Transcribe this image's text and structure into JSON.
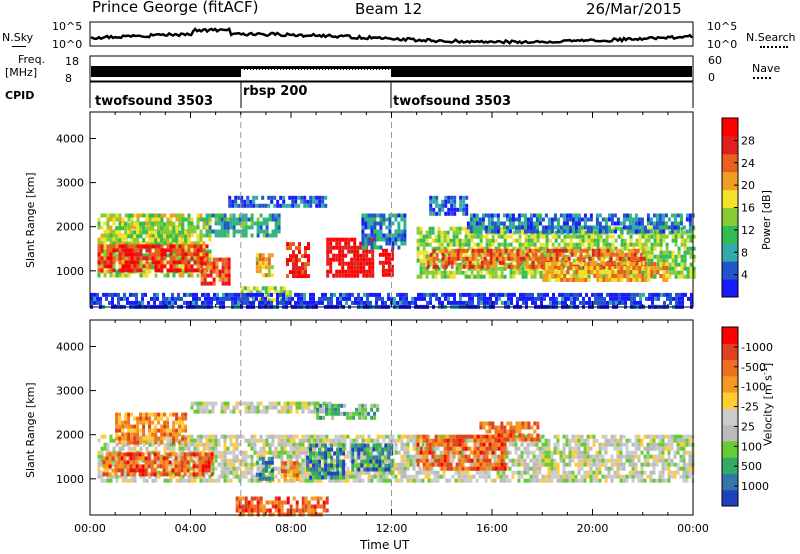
{
  "header": {
    "station": "Prince George (fitACF)",
    "beam": "Beam 12",
    "date": "26/Mar/2015"
  },
  "top_panels": {
    "nsky_label": "N.Sky",
    "nsky_ticks": [
      "10^5",
      "10^0"
    ],
    "nsearch_label": "N.Search",
    "nsearch_ticks": [
      "10^5",
      "10^0"
    ],
    "freq_label_1": "Freq.",
    "freq_label_2": "[MHz]",
    "freq_ticks": [
      "18",
      "8"
    ],
    "nave_label": "Nave",
    "nave_ticks": [
      "60",
      "0"
    ],
    "cpid_label": "CPID",
    "cpid_segments": [
      {
        "label": "twofsound 3503",
        "start": 0,
        "end": 6
      },
      {
        "label": "rbsp 200",
        "start": 6,
        "end": 12
      },
      {
        "label": "twofsound 3503",
        "start": 12,
        "end": 24
      }
    ]
  },
  "chart_data": [
    {
      "type": "heatmap",
      "title": "",
      "xlabel": "Time UT",
      "ylabel": "Slant Range [km]",
      "x_ticks": [
        "00:00",
        "04:00",
        "08:00",
        "12:00",
        "16:00",
        "20:00",
        "00:00"
      ],
      "x_range_hours": [
        0,
        24
      ],
      "y_ticks": [
        "1000",
        "2000",
        "3000",
        "4000"
      ],
      "y_range_km": [
        180,
        4600
      ],
      "colorbar_label": "Power [dB]",
      "colorbar_ticks": [
        "4",
        "8",
        "12",
        "16",
        "20",
        "24",
        "28"
      ],
      "colorbar_colors": [
        "#1a1aff",
        "#2255cc",
        "#33aaaa",
        "#33bb55",
        "#88cc33",
        "#f2e22a",
        "#f0a020",
        "#e86020",
        "#e02020",
        "#ff0000"
      ],
      "regions": [
        {
          "t0": 0.3,
          "t1": 4.8,
          "r0": 850,
          "r1": 2300,
          "level": 0.5
        },
        {
          "t0": 0.3,
          "t1": 4.6,
          "r0": 1050,
          "r1": 1600,
          "level": 0.85
        },
        {
          "t0": 1.0,
          "t1": 3.8,
          "r0": 1700,
          "r1": 2100,
          "level": 0.45
        },
        {
          "t0": 4.4,
          "t1": 5.5,
          "r0": 700,
          "r1": 1300,
          "level": 0.8
        },
        {
          "t0": 5.5,
          "t1": 9.4,
          "r0": 2450,
          "r1": 2700,
          "level": 0.15
        },
        {
          "t0": 4.6,
          "t1": 7.5,
          "r0": 1800,
          "r1": 2300,
          "level": 0.3
        },
        {
          "t0": 6.0,
          "t1": 8.0,
          "r0": 300,
          "r1": 650,
          "level": 0.45
        },
        {
          "t0": 6.6,
          "t1": 7.2,
          "r0": 900,
          "r1": 1400,
          "level": 0.6
        },
        {
          "t0": 7.8,
          "t1": 8.7,
          "r0": 900,
          "r1": 1650,
          "level": 0.85
        },
        {
          "t0": 9.4,
          "t1": 11.2,
          "r0": 850,
          "r1": 1750,
          "level": 0.95
        },
        {
          "t0": 11.5,
          "t1": 12.0,
          "r0": 900,
          "r1": 1500,
          "level": 0.95
        },
        {
          "t0": 10.8,
          "t1": 12.5,
          "r0": 1500,
          "r1": 2300,
          "level": 0.2
        },
        {
          "t0": 13.0,
          "t1": 24.0,
          "r0": 850,
          "r1": 2000,
          "level": 0.45
        },
        {
          "t0": 13.4,
          "t1": 22.0,
          "r0": 1100,
          "r1": 1500,
          "level": 0.75
        },
        {
          "t0": 18.0,
          "t1": 23.0,
          "r0": 800,
          "r1": 1200,
          "level": 0.65
        },
        {
          "t0": 15.0,
          "t1": 24.0,
          "r0": 1900,
          "r1": 2300,
          "level": 0.2
        },
        {
          "t0": 13.5,
          "t1": 15.0,
          "r0": 2300,
          "r1": 2700,
          "level": 0.15
        },
        {
          "t0": 0.0,
          "t1": 24.0,
          "r0": 200,
          "r1": 500,
          "level": 0.08
        }
      ]
    },
    {
      "type": "heatmap",
      "title": "",
      "xlabel": "Time UT",
      "ylabel": "Slant Range [km]",
      "x_ticks": [
        "00:00",
        "04:00",
        "08:00",
        "12:00",
        "16:00",
        "20:00",
        "00:00"
      ],
      "x_range_hours": [
        0,
        24
      ],
      "y_ticks": [
        "1000",
        "2000",
        "3000",
        "4000"
      ],
      "y_range_km": [
        180,
        4600
      ],
      "colorbar_label": "Velocity [m s",
      "colorbar_unit_superscript": "-1",
      "colorbar_ticks": [
        "1000",
        "500",
        "100",
        "25",
        "-25",
        "-100",
        "-500",
        "-1000"
      ],
      "colorbar_colors": [
        "#2040c0",
        "#3377aa",
        "#33aa66",
        "#66cc33",
        "#bbbbbb",
        "#cccccc",
        "#ffcc33",
        "#f59a20",
        "#f07020",
        "#e04020",
        "#ff0000"
      ],
      "regions": [
        {
          "t0": 0.3,
          "t1": 24.0,
          "r0": 1000,
          "r1": 2000,
          "level": 0.45
        },
        {
          "t0": 0.5,
          "t1": 4.8,
          "r0": 1100,
          "r1": 1600,
          "level": 0.8
        },
        {
          "t0": 1.0,
          "t1": 3.8,
          "r0": 1800,
          "r1": 2500,
          "level": 0.72
        },
        {
          "t0": 4.0,
          "t1": 9.6,
          "r0": 2550,
          "r1": 2750,
          "level": 0.45
        },
        {
          "t0": 5.8,
          "t1": 9.5,
          "r0": 200,
          "r1": 600,
          "level": 0.8
        },
        {
          "t0": 6.6,
          "t1": 7.2,
          "r0": 1000,
          "r1": 1500,
          "level": 0.15
        },
        {
          "t0": 8.6,
          "t1": 10.1,
          "r0": 1050,
          "r1": 1800,
          "level": 0.15
        },
        {
          "t0": 10.4,
          "t1": 12.0,
          "r0": 1200,
          "r1": 1800,
          "level": 0.15
        },
        {
          "t0": 7.6,
          "t1": 8.2,
          "r0": 1000,
          "r1": 1400,
          "level": 0.75
        },
        {
          "t0": 13.0,
          "t1": 16.5,
          "r0": 1200,
          "r1": 2000,
          "level": 0.8
        },
        {
          "t0": 15.5,
          "t1": 17.8,
          "r0": 1900,
          "r1": 2300,
          "level": 0.78
        },
        {
          "t0": 9.0,
          "t1": 11.5,
          "r0": 2400,
          "r1": 2700,
          "level": 0.3
        }
      ]
    }
  ]
}
